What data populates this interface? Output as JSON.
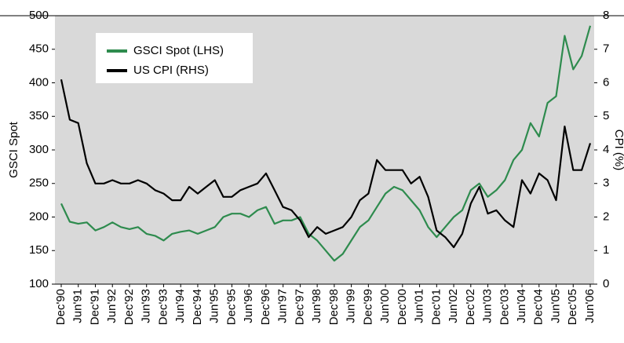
{
  "chart_data": {
    "type": "line",
    "y_label": "GSCI Spot",
    "y2_label": "CPI (%)",
    "categories": [
      "Dec'90",
      null,
      "Jun'91",
      null,
      "Dec'91",
      null,
      "Jun'92",
      null,
      "Dec'92",
      null,
      "Jun'93",
      null,
      "Dec'93",
      null,
      "Jun'94",
      null,
      "Dec'94",
      null,
      "Jun'95",
      null,
      "Dec'95",
      null,
      "Jun'96",
      null,
      "Dec'96",
      null,
      "Jun'97",
      null,
      "Dec'97",
      null,
      "Jun'98",
      null,
      "Dec'98",
      null,
      "Jun'99",
      null,
      "Dec'99",
      null,
      "Jun'00",
      null,
      "Dec'00",
      null,
      "Jun'01",
      null,
      "Dec'01",
      null,
      "Jun'02",
      null,
      "Dec'02",
      null,
      "Jun'03",
      null,
      "Dec'03",
      null,
      "Jun'04",
      null,
      "Dec'04",
      null,
      "Jun'05",
      null,
      "Dec'05",
      null,
      "Jun'06"
    ],
    "series": [
      {
        "name": "GSCI Spot (LHS)",
        "color": "#2e8b4e",
        "axis": "y",
        "values": [
          220,
          193,
          190,
          192,
          180,
          185,
          192,
          185,
          182,
          185,
          175,
          172,
          165,
          175,
          178,
          180,
          175,
          180,
          185,
          200,
          205,
          205,
          200,
          210,
          215,
          190,
          195,
          195,
          200,
          175,
          165,
          150,
          135,
          145,
          165,
          185,
          195,
          215,
          235,
          245,
          240,
          225,
          210,
          185,
          170,
          185,
          200,
          210,
          240,
          250,
          230,
          240,
          255,
          285,
          300,
          340,
          320,
          370,
          380,
          470,
          420,
          440,
          485
        ]
      },
      {
        "name": "US CPI (RHS)",
        "color": "#000000",
        "axis": "y2",
        "values": [
          6.1,
          4.9,
          4.8,
          3.6,
          3.0,
          3.0,
          3.1,
          3.0,
          3.0,
          3.1,
          3.0,
          2.8,
          2.7,
          2.5,
          2.5,
          2.9,
          2.7,
          2.9,
          3.1,
          2.6,
          2.6,
          2.8,
          2.9,
          3.0,
          3.3,
          2.8,
          2.3,
          2.2,
          1.9,
          1.4,
          1.7,
          1.5,
          1.6,
          1.7,
          2.0,
          2.5,
          2.7,
          3.7,
          3.4,
          3.4,
          3.4,
          3.0,
          3.2,
          2.6,
          1.6,
          1.4,
          1.1,
          1.5,
          2.4,
          2.9,
          2.1,
          2.2,
          1.9,
          1.7,
          3.1,
          2.7,
          3.3,
          3.1,
          2.5,
          4.7,
          3.4,
          3.4,
          4.2
        ]
      }
    ],
    "ylim": [
      100,
      500
    ],
    "yticks": [
      100,
      150,
      200,
      250,
      300,
      350,
      400,
      450,
      500
    ],
    "y2lim": [
      0,
      8
    ],
    "y2ticks": [
      0,
      1,
      2,
      3,
      4,
      5,
      6,
      7,
      8
    ],
    "legend": "upper-left"
  }
}
